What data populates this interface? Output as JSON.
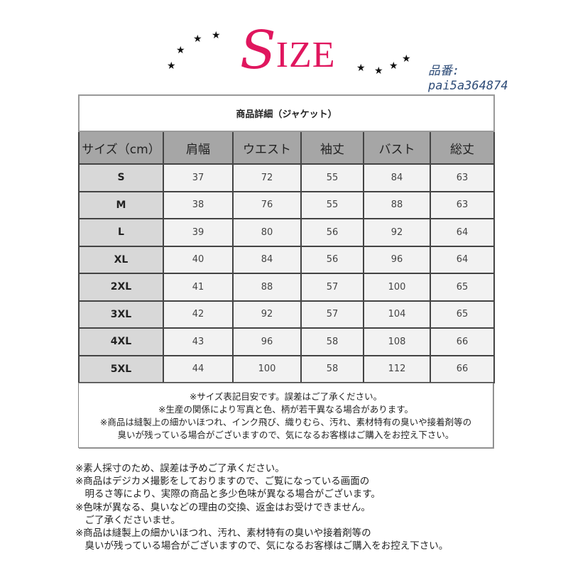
{
  "logo": {
    "first_letter": "S",
    "rest": "IZE",
    "color": "#e0165e"
  },
  "product_code": {
    "label": "品番:",
    "value": "pai5a364874"
  },
  "table": {
    "title": "商品詳細（ジャケット）",
    "headers": [
      "サイズ（cm）",
      "肩幅",
      "ウエスト",
      "袖丈",
      "バスト",
      "総丈"
    ],
    "rows": [
      [
        "S",
        "37",
        "72",
        "55",
        "84",
        "63"
      ],
      [
        "M",
        "38",
        "76",
        "55",
        "88",
        "63"
      ],
      [
        "L",
        "39",
        "80",
        "56",
        "92",
        "64"
      ],
      [
        "XL",
        "40",
        "84",
        "56",
        "96",
        "64"
      ],
      [
        "2XL",
        "41",
        "88",
        "57",
        "100",
        "65"
      ],
      [
        "3XL",
        "42",
        "92",
        "57",
        "104",
        "65"
      ],
      [
        "4XL",
        "43",
        "96",
        "58",
        "108",
        "66"
      ],
      [
        "5XL",
        "44",
        "100",
        "58",
        "112",
        "66"
      ]
    ]
  },
  "table_notes": [
    "※サイズ表記目安です。誤差はご了承ください。",
    "※生産の関係により写真と色、柄が若干異なる場合があります。",
    "※商品は縫製上の細かいほつれ、インク飛び、織りむら、汚れ、素材特有の臭いや接着剤等の",
    "臭いが残っている場合がございますので、気になるお客様はご購入をお控え下さい。"
  ],
  "notes": [
    "※素人採寸のため、誤差は予めご了承ください。",
    "※商品はデジカメ撮影をしておりますので、ご覧になっている画面の",
    "　明るさ等により、実際の商品と多少色味が異なる場合がございます。",
    "※色味が異なる、臭いなどの理由の交換、返金はお受けできません。",
    "　ご了承くださいませ。",
    "※商品は縫製上の細かいほつれ、汚れ、素材特有の臭いや接着剤等の",
    "　臭いが残っている場合がございますので、気になるお客様はご購入をお控え下さい。"
  ]
}
